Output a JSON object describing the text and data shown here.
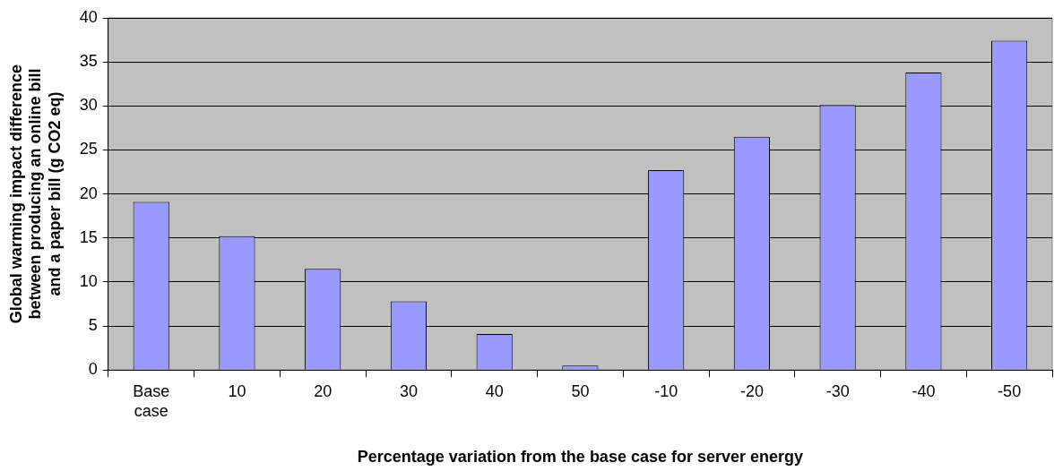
{
  "chart_data": {
    "type": "bar",
    "xlabel": "Percentage variation from the base case for server energy",
    "ylabel": "Global warming impact difference between producing an online bill and a paper bill (g CO2 eq)",
    "categories": [
      "Base case",
      "10",
      "20",
      "30",
      "40",
      "50",
      "-10",
      "-20",
      "-30",
      "-40",
      "-50"
    ],
    "values": [
      19.1,
      15.2,
      11.5,
      7.8,
      4.1,
      0.5,
      22.7,
      26.5,
      30.1,
      33.8,
      37.4
    ],
    "color": "#9999ff",
    "ylim": [
      0,
      40
    ],
    "yticks": [
      0,
      5,
      10,
      15,
      20,
      25,
      30,
      35,
      40
    ],
    "grid": "y"
  }
}
